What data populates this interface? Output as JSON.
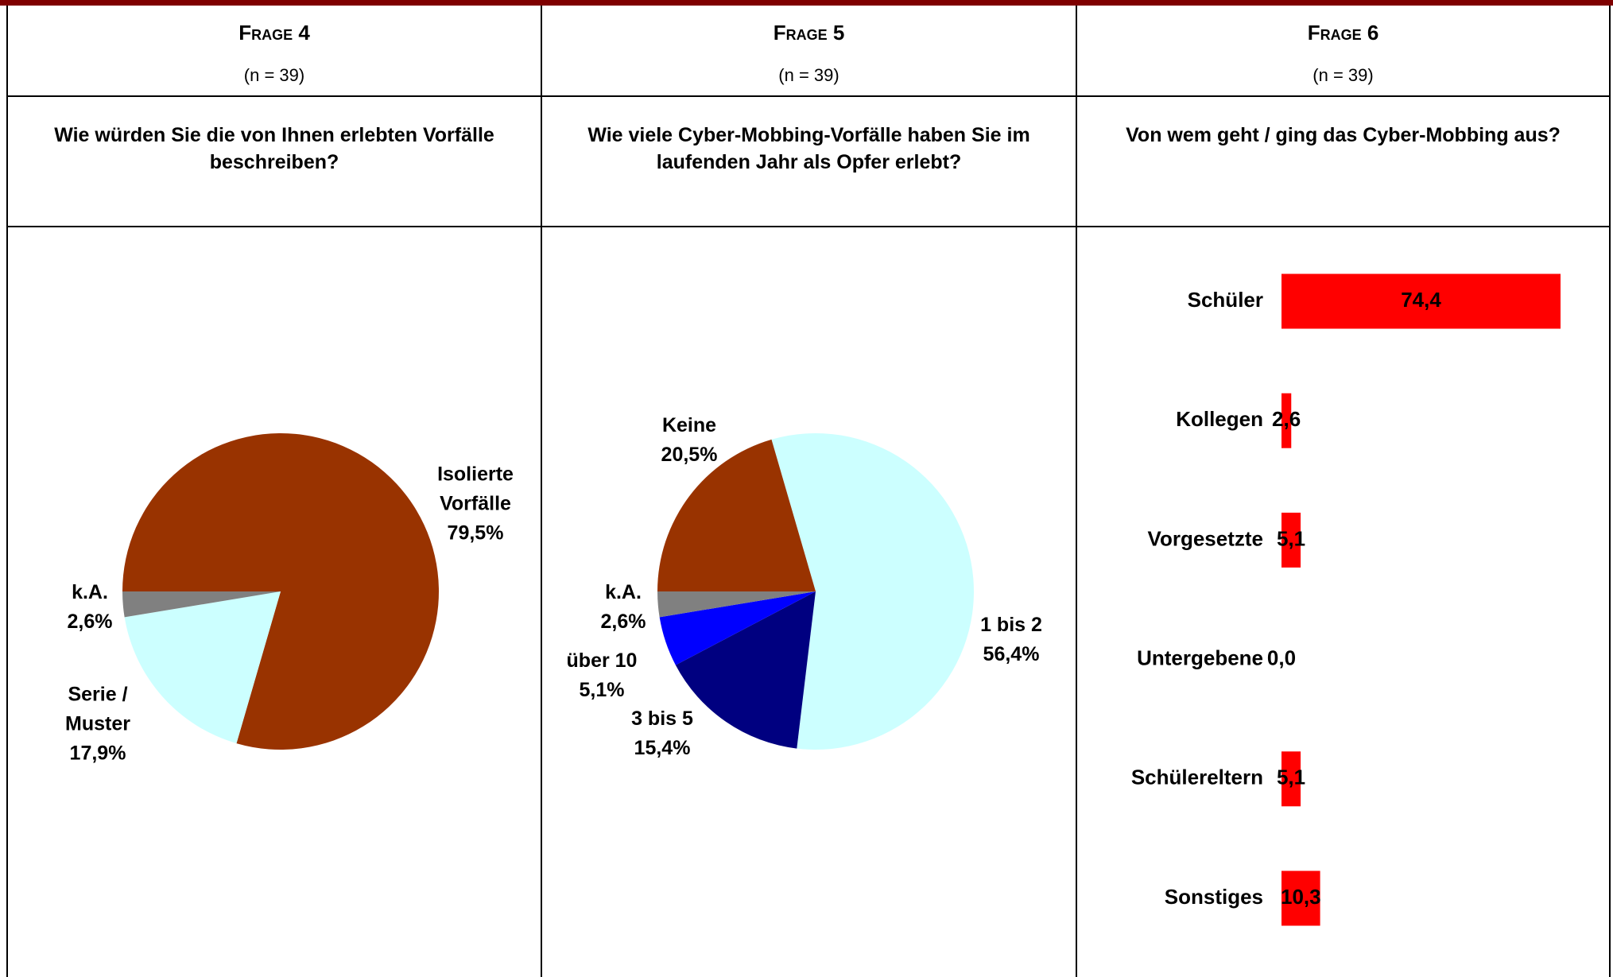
{
  "columns": [
    {
      "header": "Frage 4",
      "n": "(n = 39)",
      "question": "Wie würden Sie die von Ihnen erlebten Vorfälle beschreiben?"
    },
    {
      "header": "Frage 5",
      "n": "(n = 39)",
      "question": "Wie viele Cyber-Mobbing-Vorfälle haben Sie im laufenden Jahr als Opfer erlebt?"
    },
    {
      "header": "Frage 6",
      "n": "(n = 39)",
      "question": "Von wem geht / ging das Cyber-Mobbing aus?"
    }
  ],
  "chart_data": [
    {
      "type": "pie",
      "categories": [
        "Isolierte Vorfälle",
        "Serie / Muster",
        "k.A."
      ],
      "values": [
        79.5,
        17.9,
        2.6
      ],
      "value_labels": [
        "79,5%",
        "17,9%",
        "2,6%"
      ],
      "colors": [
        "#993300",
        "#ccffff",
        "#808080"
      ]
    },
    {
      "type": "pie",
      "categories": [
        "1 bis 2",
        "3 bis 5",
        "über 10",
        "k.A.",
        "Keine"
      ],
      "values": [
        56.4,
        15.4,
        5.1,
        2.6,
        20.5
      ],
      "value_labels": [
        "56,4%",
        "15,4%",
        "5,1%",
        "2,6%",
        "20,5%"
      ],
      "colors": [
        "#ccffff",
        "#000080",
        "#0000ff",
        "#808080",
        "#993300"
      ]
    },
    {
      "type": "hbar",
      "categories": [
        "Schüler",
        "Kollegen",
        "Vorgesetzte",
        "Untergebene",
        "Schülereltern",
        "Sonstiges"
      ],
      "values": [
        74.4,
        2.6,
        5.1,
        0.0,
        5.1,
        10.3
      ],
      "value_labels": [
        "74,4",
        "2,6",
        "5,1",
        "0,0",
        "5,1",
        "10,3"
      ],
      "color": "#ff0000"
    }
  ]
}
